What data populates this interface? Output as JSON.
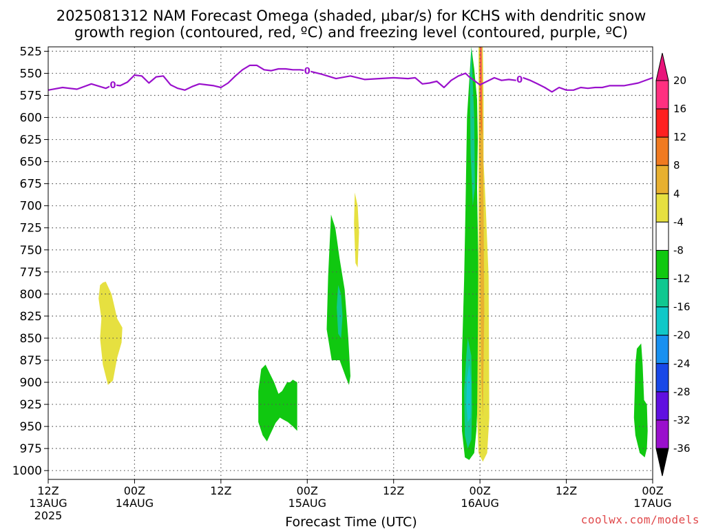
{
  "title_line1": "2025081312 NAM Forecast Omega (shaded, μbar/s) for KCHS with dendritic snow",
  "title_line2": "growth region (contoured, red, ºC) and freezing level (contoured, purple, ºC)",
  "credit": "coolwx.com/models",
  "colors": {
    "freezing_level": "#9a10cc",
    "ground": "#a0522d",
    "grid": "#555555"
  },
  "chart_data": {
    "type": "area",
    "xlabel": "Forecast Time (UTC)",
    "ylabel": "",
    "x_unit": "hours after 2025-08-13 12Z",
    "xlim": [
      0,
      84
    ],
    "ylim_hpa": [
      520,
      1010
    ],
    "y_scale": "pressure (inverted)",
    "grid": true,
    "y_ticks": [
      525,
      550,
      575,
      600,
      625,
      650,
      675,
      700,
      725,
      750,
      775,
      800,
      825,
      850,
      875,
      900,
      925,
      950,
      975,
      1000
    ],
    "x_ticks": [
      {
        "hour": 0,
        "line1": "12Z",
        "line2": "13AUG",
        "line3": "2025"
      },
      {
        "hour": 12,
        "line1": "00Z",
        "line2": "14AUG",
        "line3": ""
      },
      {
        "hour": 24,
        "line1": "12Z",
        "line2": "",
        "line3": ""
      },
      {
        "hour": 36,
        "line1": "00Z",
        "line2": "15AUG",
        "line3": ""
      },
      {
        "hour": 48,
        "line1": "12Z",
        "line2": "",
        "line3": ""
      },
      {
        "hour": 60,
        "line1": "00Z",
        "line2": "16AUG",
        "line3": ""
      },
      {
        "hour": 72,
        "line1": "12Z",
        "line2": "",
        "line3": ""
      },
      {
        "hour": 84,
        "line1": "00Z",
        "line2": "17AUG",
        "line3": ""
      }
    ],
    "colorbar": {
      "labels": [
        "20",
        "16",
        "12",
        "8",
        "4",
        "-4",
        "-8",
        "-12",
        "-16",
        "-20",
        "-24",
        "-28",
        "-32",
        "-36"
      ],
      "colors": [
        "#ff3080",
        "#ff2020",
        "#f07a20",
        "#e8b030",
        "#e6e040",
        "#ffffff",
        "#10c810",
        "#10c890",
        "#10c8c8",
        "#1890f0",
        "#1848e8",
        "#6010e0",
        "#9a10cc",
        "#a8a8a8"
      ],
      "top_color": "#e8147a",
      "bottom_color": "#000000"
    },
    "freezing_level": {
      "label": "0",
      "hours": [
        0,
        2,
        4,
        6,
        8,
        9,
        10,
        11,
        12,
        13,
        14,
        15,
        16,
        17,
        18,
        19,
        20,
        21,
        22,
        23,
        24,
        25,
        26,
        27,
        28,
        29,
        30,
        31,
        32,
        33,
        34,
        35,
        36,
        38,
        40,
        42,
        44,
        46,
        48,
        50,
        51,
        52,
        53,
        54,
        55,
        56,
        57,
        58,
        58.5,
        59,
        60,
        61,
        62,
        63,
        64,
        65,
        66,
        67,
        68,
        69,
        70,
        71,
        72,
        73,
        74,
        75,
        76,
        77,
        78,
        80,
        82,
        84
      ],
      "pressure_hpa": [
        569,
        566,
        568,
        562,
        567,
        563,
        564,
        560,
        552,
        553,
        561,
        554,
        553,
        563,
        567,
        569,
        565,
        562,
        563,
        564,
        566,
        561,
        553,
        546,
        541,
        541,
        546,
        547,
        545,
        545,
        546,
        546,
        547,
        551,
        556,
        553,
        557,
        556,
        555,
        556,
        555,
        562,
        561,
        559,
        566,
        558,
        553,
        550,
        554,
        557,
        563,
        559,
        555,
        558,
        557,
        558,
        555,
        558,
        562,
        566,
        571,
        566,
        569,
        569,
        566,
        567,
        566,
        566,
        564,
        564,
        561,
        555
      ],
      "label_hours": [
        9,
        36,
        65.5
      ]
    },
    "omega_regions": [
      {
        "value": "4",
        "color": "#e6e040",
        "hours": [
          7.2,
          7.6,
          8.0,
          8.8,
          9.6,
          10.3,
          10.2,
          9.6,
          9.0,
          8.3,
          7.6,
          7.2,
          7.4,
          7.0
        ],
        "pressure_hpa": [
          790,
          787,
          786,
          800,
          828,
          838,
          855,
          872,
          898,
          903,
          880,
          850,
          828,
          805
        ]
      },
      {
        "value": "-4",
        "color": "#10c810",
        "hours": [
          29.6,
          30.2,
          30.8,
          31.4,
          32.0,
          32.5,
          33.2,
          33.6,
          34.0,
          34.6,
          34.6,
          34.0,
          33.3,
          32.6,
          32.2,
          31.6,
          30.8,
          30.4,
          29.8,
          29.2,
          29.2,
          29.6
        ],
        "pressure_hpa": [
          885,
          880,
          890,
          900,
          913,
          910,
          900,
          900,
          897,
          900,
          955,
          950,
          945,
          942,
          940,
          946,
          960,
          967,
          960,
          945,
          910,
          885
        ]
      },
      {
        "value": "-4",
        "color": "#10c810",
        "hours": [
          39.3,
          39.9,
          40.5,
          41.2,
          41.7,
          42.0,
          41.8,
          41.4,
          40.5,
          39.4,
          38.7,
          38.9,
          39.3
        ],
        "pressure_hpa": [
          710,
          725,
          760,
          795,
          850,
          893,
          903,
          895,
          875,
          875,
          840,
          780,
          710
        ]
      },
      {
        "value": "-8",
        "color": "#10c890",
        "hours": [
          40.3,
          40.7,
          40.9,
          40.7,
          40.3,
          40.1
        ],
        "pressure_hpa": [
          790,
          800,
          825,
          850,
          845,
          815
        ]
      },
      {
        "value": "4",
        "color": "#e6e040",
        "hours": [
          42.6,
          43.0,
          43.2,
          43.0,
          42.7,
          42.5
        ],
        "pressure_hpa": [
          685,
          700,
          730,
          770,
          765,
          720
        ]
      },
      {
        "value": "-4",
        "color": "#10c810",
        "hours": [
          58.8,
          59.2,
          59.6,
          59.7,
          59.6,
          59.7,
          59.8,
          59.8,
          59.5,
          59.2,
          58.5,
          57.9,
          57.5,
          57.5,
          57.8,
          58.0,
          58.2,
          58.8
        ],
        "pressure_hpa": [
          520,
          545,
          580,
          625,
          680,
          730,
          790,
          900,
          955,
          980,
          988,
          985,
          955,
          870,
          785,
          700,
          600,
          520
        ]
      },
      {
        "value": "-8",
        "color": "#10c890",
        "hours": [
          58.8,
          59.2,
          59.3,
          59.0,
          58.7,
          58.6
        ],
        "pressure_hpa": [
          520,
          600,
          680,
          700,
          640,
          560
        ]
      },
      {
        "value": "-8",
        "color": "#10c890",
        "hours": [
          58.3,
          58.8,
          58.9,
          58.8,
          58.3,
          57.9,
          57.8,
          58.1
        ],
        "pressure_hpa": [
          850,
          870,
          930,
          965,
          975,
          960,
          910,
          870
        ]
      },
      {
        "value": "-12",
        "color": "#10c8c8",
        "hours": [
          58.5,
          58.8,
          58.7,
          58.3,
          58.1,
          58.2
        ],
        "pressure_hpa": [
          880,
          900,
          940,
          945,
          925,
          895
        ]
      },
      {
        "value": "4",
        "color": "#e6e040",
        "hours": [
          59.8,
          60.4,
          60.5,
          60.5,
          60.8,
          61.2,
          61.3,
          61.0,
          60.4,
          59.8,
          59.6,
          59.7,
          59.8
        ],
        "pressure_hpa": [
          520,
          520,
          580,
          650,
          700,
          780,
          940,
          980,
          990,
          980,
          940,
          850,
          700
        ]
      },
      {
        "value": "8",
        "color": "#e8b030",
        "hours": [
          59.9,
          60.3,
          60.4,
          60.5,
          60.6,
          60.4,
          60.2,
          60.0,
          59.9
        ],
        "pressure_hpa": [
          520,
          520,
          600,
          700,
          820,
          940,
          900,
          760,
          620
        ]
      },
      {
        "value": "12",
        "color": "#f07a20",
        "hours": [
          60.0,
          60.2,
          60.3,
          60.1,
          60.0
        ],
        "pressure_hpa": [
          520,
          520,
          620,
          610,
          560
        ]
      },
      {
        "value": "16",
        "color": "#ff3080",
        "hours": [
          60.1,
          60.2,
          60.2,
          60.1
        ],
        "pressure_hpa": [
          520,
          520,
          580,
          580
        ]
      },
      {
        "value": "-4",
        "color": "#10c810",
        "hours": [
          81.8,
          82.4,
          82.6,
          82.8,
          83.2,
          83.3,
          83.2,
          82.9,
          82.2,
          81.6,
          81.4,
          81.5,
          81.6,
          81.8
        ],
        "pressure_hpa": [
          862,
          856,
          880,
          920,
          925,
          955,
          975,
          985,
          980,
          960,
          940,
          910,
          880,
          862
        ]
      }
    ],
    "ground_top_hpa": 1012
  }
}
